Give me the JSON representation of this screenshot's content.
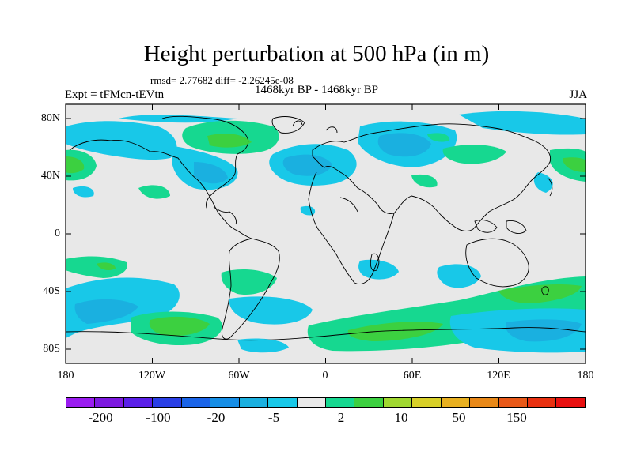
{
  "title": "Height perturbation at 500 hPa (in m)",
  "stats_text": "rmsd= 2.77682 diff= -2.26245e-08",
  "period_text": "1468kyr BP - 1468kyr BP",
  "experiment_text": "Expt = tFMcn-tEVtn",
  "season_text": "JJA",
  "lat_labels": [
    "80N",
    "40N",
    "0",
    "40S",
    "80S"
  ],
  "lon_labels": [
    "180",
    "120W",
    "60W",
    "0",
    "60E",
    "120E",
    "180"
  ],
  "colorbar": {
    "colors": [
      "#9a1cf0",
      "#7d19e0",
      "#5a1fe8",
      "#2a3fe6",
      "#1a64e8",
      "#168ee6",
      "#1ab0e0",
      "#18c8e8",
      "#e8e8e8",
      "#16d890",
      "#3cd040",
      "#a0d830",
      "#d8d028",
      "#e8b020",
      "#e88818",
      "#e85818",
      "#e83010",
      "#e81010"
    ],
    "labels": [
      "-200",
      "-100",
      "-20",
      "-5",
      "2",
      "10",
      "50",
      "150"
    ]
  }
}
